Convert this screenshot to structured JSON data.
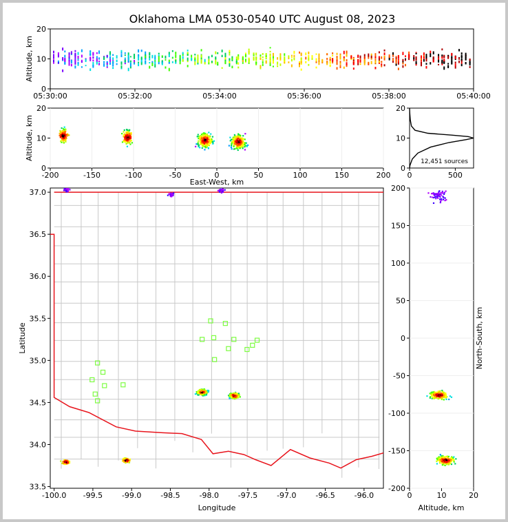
{
  "title": "Oklahoma LMA 0530-0540 UTC August 08, 2023",
  "source_count_label": "12,451 sources",
  "colors": {
    "state_border": "#e8141c",
    "county": "#c8c8c8",
    "stations": "#7cfc40",
    "frame": "#c8c8c8"
  },
  "chart_data": [
    {
      "id": "time-height",
      "type": "scatter",
      "xlabel": "",
      "ylabel": "Altitude, km",
      "x_ticks": [
        "05:30:00",
        "05:32:00",
        "05:34:00",
        "05:36:00",
        "05:38:00",
        "05:40:00"
      ],
      "xlim": [
        "05:30:00",
        "05:40:00"
      ],
      "ylim": [
        0,
        20
      ],
      "y_ticks": [
        "0",
        "10",
        "20"
      ],
      "note_series": "Dense VHF source columns every ~5 s, altitudes mostly 5-15 km, colored by time"
    },
    {
      "id": "ew-height",
      "type": "scatter",
      "xlabel": "East-West, km",
      "ylabel": "Altitude, km",
      "xlim": [
        -200,
        200
      ],
      "ylim": [
        0,
        20
      ],
      "x_ticks": [
        "-200",
        "-150",
        "-100",
        "-50",
        "0",
        "50",
        "100",
        "150",
        "200"
      ],
      "y_ticks": [
        "0",
        "10",
        "20"
      ],
      "clusters": [
        {
          "x": -185,
          "y": 11
        },
        {
          "x": -108,
          "y": 10.5
        },
        {
          "x": -15,
          "y": 9.5
        },
        {
          "x": 25,
          "y": 9
        }
      ]
    },
    {
      "id": "altitude-histogram",
      "type": "line",
      "xlim": [
        0,
        700
      ],
      "ylim": [
        0,
        20
      ],
      "x_ticks": [
        "0",
        "500"
      ],
      "y_ticks": [
        "0",
        "10",
        "20"
      ],
      "profile": [
        [
          0,
          0
        ],
        [
          5,
          1
        ],
        [
          30,
          3
        ],
        [
          90,
          5
        ],
        [
          230,
          7
        ],
        [
          430,
          8.5
        ],
        [
          620,
          9.5
        ],
        [
          700,
          10
        ],
        [
          640,
          10.5
        ],
        [
          460,
          11
        ],
        [
          200,
          11.6
        ],
        [
          60,
          12.6
        ],
        [
          20,
          14
        ],
        [
          8,
          16
        ],
        [
          3,
          18
        ],
        [
          0,
          20
        ]
      ]
    },
    {
      "id": "plan-view",
      "type": "scatter",
      "xlabel": "Longitude",
      "ylabel": "Latitude",
      "xlim": [
        -100.05,
        -95.75
      ],
      "ylim": [
        33.48,
        37.05
      ],
      "x_ticks": [
        "-100.0",
        "-99.5",
        "-99.0",
        "-98.5",
        "-98.0",
        "-97.5",
        "-97.0",
        "-96.5",
        "-96.0"
      ],
      "y_ticks": [
        "33.5",
        "34.0",
        "34.5",
        "35.0",
        "35.5",
        "36.0",
        "36.5",
        "37.0"
      ],
      "clusters": [
        {
          "lon": -99.86,
          "lat": 33.8
        },
        {
          "lon": -99.08,
          "lat": 33.82
        },
        {
          "lon": -98.1,
          "lat": 34.63
        },
        {
          "lon": -97.68,
          "lat": 34.59
        },
        {
          "lon": -99.85,
          "lat": 37.04
        },
        {
          "lon": -98.5,
          "lat": 36.98
        },
        {
          "lon": -97.85,
          "lat": 37.03
        }
      ],
      "stations": [
        [
          -97.98,
          35.47
        ],
        [
          -97.79,
          35.44
        ],
        [
          -97.94,
          35.27
        ],
        [
          -98.09,
          35.25
        ],
        [
          -97.68,
          35.25
        ],
        [
          -97.38,
          35.24
        ],
        [
          -97.44,
          35.18
        ],
        [
          -97.75,
          35.14
        ],
        [
          -97.51,
          35.13
        ],
        [
          -97.93,
          35.01
        ],
        [
          -99.44,
          34.97
        ],
        [
          -99.37,
          34.86
        ],
        [
          -99.51,
          34.77
        ],
        [
          -99.35,
          34.7
        ],
        [
          -99.11,
          34.71
        ],
        [
          -99.47,
          34.6
        ],
        [
          -99.44,
          34.52
        ]
      ]
    },
    {
      "id": "ns-height",
      "type": "scatter",
      "xlabel": "Altitude, km",
      "ylabel": "North-South, km",
      "xlim": [
        0,
        20
      ],
      "ylim": [
        -200,
        200
      ],
      "x_ticks": [
        "0",
        "10",
        "20"
      ],
      "y_ticks": [
        "-200",
        "-150",
        "-100",
        "-50",
        "0",
        "50",
        "100",
        "150",
        "200"
      ],
      "clusters": [
        {
          "x": 9,
          "y": -75
        },
        {
          "x": 11,
          "y": -162
        },
        {
          "x": 9,
          "y": 190
        }
      ]
    }
  ]
}
